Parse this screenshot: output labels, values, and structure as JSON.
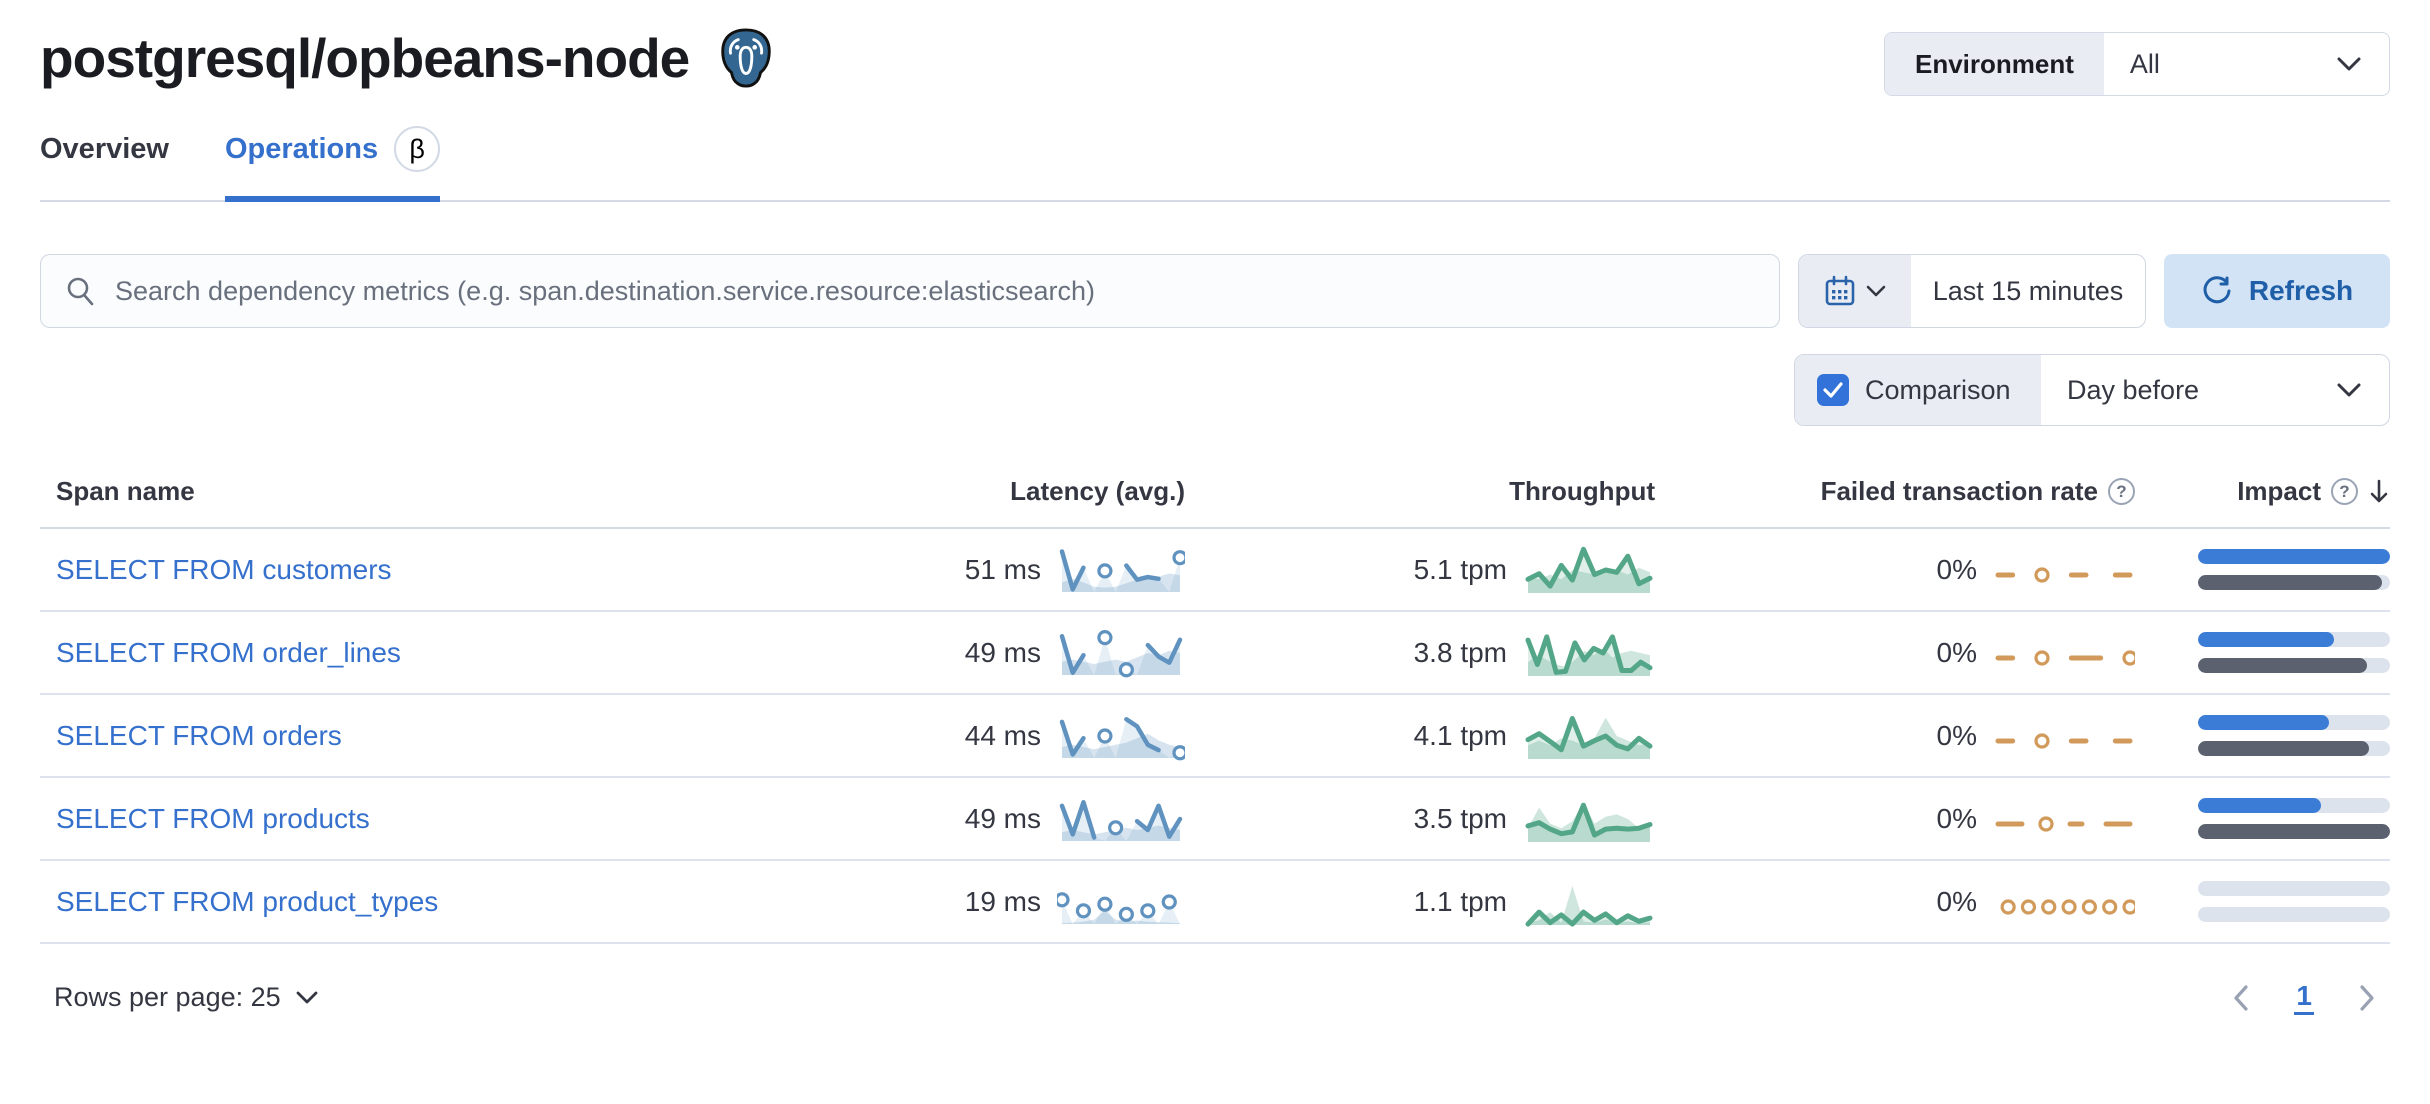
{
  "header": {
    "title": "postgresql/opbeans-node",
    "environment_label": "Environment",
    "environment_value": "All"
  },
  "tabs": [
    {
      "label": "Overview"
    },
    {
      "label": "Operations",
      "badge": "β"
    }
  ],
  "toolbar": {
    "search_placeholder": "Search dependency metrics (e.g. span.destination.service.resource:elasticsearch)",
    "time_range": "Last 15 minutes",
    "refresh_label": "Refresh",
    "comparison_label": "Comparison",
    "comparison_checked": true,
    "comparison_value": "Day before"
  },
  "table": {
    "columns": {
      "span_name": "Span name",
      "latency": "Latency (avg.)",
      "throughput": "Throughput",
      "failed_rate": "Failed transaction rate",
      "impact": "Impact"
    },
    "rows": [
      {
        "span_name": "SELECT FROM customers",
        "latency": "51 ms",
        "throughput": "5.1 tpm",
        "failed_rate": "0%"
      },
      {
        "span_name": "SELECT FROM order_lines",
        "latency": "49 ms",
        "throughput": "3.8 tpm",
        "failed_rate": "0%"
      },
      {
        "span_name": "SELECT FROM orders",
        "latency": "44 ms",
        "throughput": "4.1 tpm",
        "failed_rate": "0%"
      },
      {
        "span_name": "SELECT FROM products",
        "latency": "49 ms",
        "throughput": "3.5 tpm",
        "failed_rate": "0%"
      },
      {
        "span_name": "SELECT FROM product_types",
        "latency": "19 ms",
        "throughput": "1.1 tpm",
        "failed_rate": "0%"
      }
    ]
  },
  "footer": {
    "rows_per_page_label": "Rows per page: 25",
    "page": "1"
  },
  "colors": {
    "accent_blue": "#3470cc",
    "refresh_bg": "#d3e3f6",
    "refresh_text": "#1f5fa8",
    "checkbox_blue": "#3272d9",
    "spark_blue": "#6092c0",
    "spark_green": "#54a689",
    "spark_orange": "#d29a5a",
    "impact_current": "#3b7cd6",
    "impact_previous": "#5b616e"
  },
  "chart_data": {
    "type": "table",
    "note": "sparkline values normalized 0-1, current period vs previous period (comparison: Day before); impact in percent",
    "rows": [
      {
        "span_name": "SELECT FROM customers",
        "latency_ms": 51,
        "throughput_tpm": 5.1,
        "failed_rate_pct": 0,
        "impact_current_pct": 100,
        "impact_previous_pct": 96,
        "latency_spark": {
          "current": [
            0.92,
            0.06,
            0.55,
            null,
            0.48,
            null,
            0.6,
            0.28,
            0.34,
            0.3,
            null,
            0.78
          ],
          "previous": [
            0.22,
            0.3,
            0.22,
            0.12,
            0.1,
            0.12,
            0.2,
            0.28,
            0.38,
            0.35,
            0.42,
            0.38
          ]
        },
        "throughput_spark": {
          "current": [
            0.3,
            0.42,
            0.15,
            0.6,
            0.28,
            0.95,
            0.4,
            0.5,
            0.45,
            0.8,
            0.2,
            0.32
          ],
          "previous": [
            0.35,
            0.3,
            0.4,
            0.3,
            0.5,
            0.45,
            0.4,
            0.55,
            0.5,
            0.4,
            0.55,
            0.45
          ]
        },
        "failed_spark": {
          "current": [
            0,
            0,
            null,
            0,
            null,
            0,
            0,
            null,
            0,
            0
          ]
        }
      },
      {
        "span_name": "SELECT FROM order_lines",
        "latency_ms": 49,
        "throughput_tpm": 3.8,
        "failed_rate_pct": 0,
        "impact_current_pct": 71,
        "impact_previous_pct": 88,
        "latency_spark": {
          "current": [
            0.88,
            0.05,
            0.45,
            null,
            0.85,
            null,
            0.12,
            null,
            0.68,
            0.42,
            0.28,
            0.8
          ],
          "previous": [
            0.3,
            0.35,
            0.3,
            0.25,
            0.3,
            0.35,
            0.3,
            0.4,
            0.5,
            0.45,
            0.55,
            0.5
          ]
        },
        "throughput_spark": {
          "current": [
            0.78,
            0.25,
            0.85,
            0.08,
            0.1,
            0.72,
            0.35,
            0.6,
            0.5,
            0.85,
            0.12,
            0.12,
            0.3,
            0.18
          ],
          "previous": [
            0.3,
            0.45,
            0.35,
            0.25,
            0.2,
            0.35,
            0.55,
            0.45,
            0.6,
            0.4,
            0.5,
            0.55,
            0.5,
            0.45
          ]
        },
        "failed_spark": {
          "current": [
            0,
            0,
            null,
            0,
            null,
            0,
            0,
            0,
            null,
            0
          ]
        }
      },
      {
        "span_name": "SELECT FROM orders",
        "latency_ms": 44,
        "throughput_tpm": 4.1,
        "failed_rate_pct": 0,
        "impact_current_pct": 68,
        "impact_previous_pct": 89,
        "latency_spark": {
          "current": [
            0.82,
            0.08,
            0.45,
            null,
            0.5,
            null,
            0.88,
            0.72,
            0.3,
            0.18,
            null,
            0.12
          ],
          "previous": [
            0.25,
            0.3,
            0.25,
            0.2,
            0.25,
            0.3,
            0.35,
            0.45,
            0.55,
            0.4,
            0.3,
            0.25
          ]
        },
        "throughput_spark": {
          "current": [
            0.42,
            0.55,
            0.38,
            0.2,
            0.88,
            0.28,
            0.4,
            0.5,
            0.3,
            0.22,
            0.45,
            0.28
          ],
          "previous": [
            0.3,
            0.4,
            0.3,
            0.45,
            0.4,
            0.3,
            0.45,
            0.9,
            0.5,
            0.4,
            0.3,
            0.35
          ]
        },
        "failed_spark": {
          "current": [
            0,
            0,
            null,
            0,
            null,
            0,
            0,
            null,
            0,
            0
          ]
        }
      },
      {
        "span_name": "SELECT FROM products",
        "latency_ms": 49,
        "throughput_tpm": 3.5,
        "failed_rate_pct": 0,
        "impact_current_pct": 64,
        "impact_previous_pct": 100,
        "latency_spark": {
          "current": [
            0.8,
            0.15,
            0.88,
            0.08,
            null,
            0.3,
            null,
            0.45,
            0.25,
            0.8,
            0.1,
            0.5
          ],
          "previous": [
            0.2,
            0.25,
            0.2,
            0.15,
            0.2,
            0.25,
            0.3,
            0.25,
            0.3,
            0.35,
            0.3,
            0.25
          ]
        },
        "throughput_spark": {
          "current": [
            0.35,
            0.42,
            0.28,
            0.18,
            0.22,
            0.8,
            0.15,
            0.28,
            0.3,
            0.28,
            0.3,
            0.38
          ],
          "previous": [
            0.3,
            0.75,
            0.4,
            0.3,
            0.45,
            0.85,
            0.4,
            0.55,
            0.6,
            0.5,
            0.3,
            0.4
          ]
        },
        "failed_spark": {
          "current": [
            0,
            0,
            0,
            null,
            0,
            null,
            0,
            0,
            null,
            0,
            0,
            0
          ]
        }
      },
      {
        "span_name": "SELECT FROM product_types",
        "latency_ms": 19,
        "throughput_tpm": 1.1,
        "failed_rate_pct": 0,
        "impact_current_pct": 0,
        "impact_previous_pct": 0,
        "latency_spark": {
          "current": [
            0.55,
            null,
            0.3,
            null,
            0.45,
            null,
            0.22,
            null,
            0.3,
            null,
            0.5,
            null
          ],
          "previous": [
            0.02,
            0.03,
            0.05,
            0.1,
            0.3,
            0.1,
            0.05,
            0.08,
            0.05,
            0.04,
            0.03,
            0.02
          ]
        },
        "throughput_spark": {
          "current": [
            0.02,
            0.28,
            0.05,
            0.22,
            0.02,
            0.28,
            0.1,
            0.24,
            0.05,
            0.2,
            0.08,
            0.15
          ],
          "previous": [
            0.05,
            0.1,
            0.28,
            0.05,
            0.85,
            0.08,
            0.05,
            0.12,
            0.05,
            0.08,
            0.04,
            0.06
          ]
        },
        "failed_spark": {
          "current": [
            null,
            0,
            null,
            0,
            null,
            0,
            null,
            0,
            null,
            0,
            null,
            0,
            null,
            0
          ]
        }
      }
    ]
  }
}
